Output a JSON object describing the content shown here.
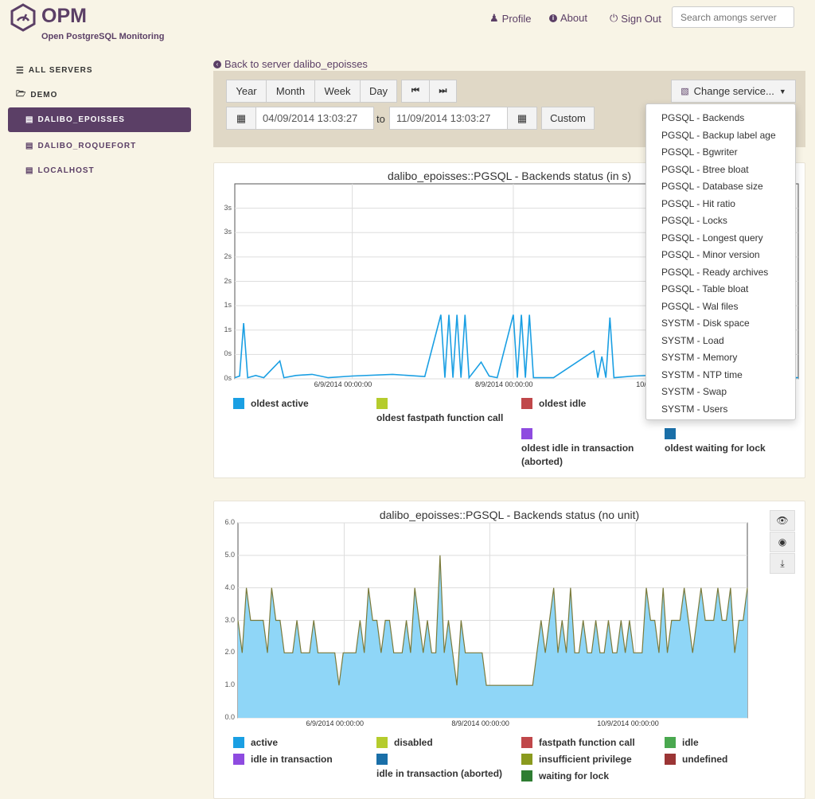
{
  "app": {
    "name": "OPM",
    "subtitle": "Open PostgreSQL Monitoring"
  },
  "topnav": [
    {
      "label": "Profile",
      "icon": "user-icon"
    },
    {
      "label": "About",
      "icon": "info-icon"
    },
    {
      "label": "Sign Out",
      "icon": "power-icon"
    }
  ],
  "search": {
    "placeholder": "Search amongs server",
    "value": ""
  },
  "sidebar": {
    "items": [
      {
        "label": "ALL SERVERS",
        "icon": "list-icon"
      },
      {
        "label": "DEMO",
        "icon": "folder-icon"
      },
      {
        "label": "DALIBO_EPOISSES",
        "icon": "server-icon",
        "active": true
      },
      {
        "label": "DALIBO_ROQUEFORT",
        "icon": "server-icon"
      },
      {
        "label": "LOCALHOST",
        "icon": "server-icon"
      }
    ]
  },
  "back_link": "Back to server dalibo_epoisses",
  "toolbar": {
    "ranges": [
      "Year",
      "Month",
      "Week",
      "Day"
    ],
    "start": "04/09/2014 13:03:27",
    "to": "to",
    "end": "11/09/2014 13:03:27",
    "custom": "Custom",
    "change_service": "Change service...",
    "accent": "#5b3f66"
  },
  "dropdown": [
    "PGSQL - Backends",
    "PGSQL - Backup label age",
    "PGSQL - Bgwriter",
    "PGSQL - Btree bloat",
    "PGSQL - Database size",
    "PGSQL - Hit ratio",
    "PGSQL - Locks",
    "PGSQL - Longest query",
    "PGSQL - Minor version",
    "PGSQL - Ready archives",
    "PGSQL - Table bloat",
    "PGSQL - Wal files",
    "SYSTM - Disk space",
    "SYSTM - Load",
    "SYSTM - Memory",
    "SYSTM - NTP time",
    "SYSTM - Swap",
    "SYSTM - Users"
  ],
  "chart_data": [
    {
      "type": "line",
      "title": "dalibo_epoisses::PGSQL - Backends status (in s)",
      "yticks": [
        "0s",
        "0s",
        "1s",
        "1s",
        "2s",
        "2s",
        "3s",
        "3s"
      ],
      "ylim": [
        0,
        3.5
      ],
      "xticks": [
        "6/9/2014 00:00:00",
        "8/9/2014 00:00:00",
        "10/9/2014 00:00:00"
      ],
      "xlim_days": [
        4.54,
        11.54
      ],
      "grid": true,
      "legend_position": "bottom",
      "series": [
        {
          "name": "oldest active",
          "color": "#1a9fe3",
          "points": [
            [
              4.54,
              0.02
            ],
            [
              4.6,
              0.05
            ],
            [
              4.65,
              1.0
            ],
            [
              4.7,
              0.02
            ],
            [
              4.8,
              0.06
            ],
            [
              4.9,
              0.02
            ],
            [
              5.1,
              0.32
            ],
            [
              5.15,
              0.02
            ],
            [
              5.3,
              0.06
            ],
            [
              5.5,
              0.08
            ],
            [
              5.7,
              0.02
            ],
            [
              6.0,
              0.05
            ],
            [
              6.5,
              0.08
            ],
            [
              6.9,
              0.04
            ],
            [
              7.1,
              1.15
            ],
            [
              7.15,
              0.02
            ],
            [
              7.2,
              1.15
            ],
            [
              7.25,
              0.02
            ],
            [
              7.3,
              1.15
            ],
            [
              7.35,
              0.02
            ],
            [
              7.4,
              1.15
            ],
            [
              7.45,
              0.02
            ],
            [
              7.6,
              0.3
            ],
            [
              7.7,
              0.05
            ],
            [
              7.8,
              0.02
            ],
            [
              8.0,
              1.15
            ],
            [
              8.05,
              0.02
            ],
            [
              8.1,
              1.15
            ],
            [
              8.15,
              0.02
            ],
            [
              8.2,
              1.15
            ],
            [
              8.25,
              0.02
            ],
            [
              8.5,
              0.02
            ],
            [
              9.0,
              0.5
            ],
            [
              9.05,
              0.02
            ],
            [
              9.1,
              0.4
            ],
            [
              9.15,
              0.02
            ],
            [
              9.2,
              1.1
            ],
            [
              9.25,
              0.02
            ],
            [
              9.5,
              0.05
            ],
            [
              10.0,
              0.08
            ],
            [
              10.2,
              0.04
            ],
            [
              10.4,
              1.15
            ],
            [
              10.45,
              0.02
            ],
            [
              10.5,
              1.15
            ],
            [
              10.55,
              0.02
            ],
            [
              10.6,
              1.15
            ],
            [
              10.65,
              0.02
            ],
            [
              10.7,
              1.15
            ],
            [
              10.75,
              0.02
            ],
            [
              11.54,
              0.02
            ]
          ]
        },
        {
          "name": "oldest fastpath function call",
          "color": "#b5cc2d"
        },
        {
          "name": "oldest idle",
          "color": "#c0474a"
        },
        {
          "name": "oldest idle in transaction (aborted)",
          "color": "#8e4be0"
        },
        {
          "name": "oldest waiting for lock",
          "color": "#1a6fa8"
        }
      ]
    },
    {
      "type": "area",
      "title": "dalibo_epoisses::PGSQL - Backends status (no unit)",
      "yticks": [
        "0.0",
        "1.0",
        "2.0",
        "3.0",
        "4.0",
        "5.0",
        "6.0"
      ],
      "ylim": [
        0,
        6
      ],
      "xticks": [
        "6/9/2014 00:00:00",
        "8/9/2014 00:00:00",
        "10/9/2014 00:00:00"
      ],
      "xlim_days": [
        4.54,
        11.54
      ],
      "grid": true,
      "legend_position": "bottom",
      "series": [
        {
          "name": "active",
          "color": "#1a9fe3",
          "fill": "#8fd6f7",
          "values": [
            3,
            2,
            4,
            3,
            3,
            3,
            3,
            2,
            4,
            3,
            3,
            2,
            2,
            2,
            3,
            2,
            2,
            2,
            3,
            2,
            2,
            2,
            2,
            2,
            1,
            2,
            2,
            2,
            2,
            3,
            2,
            4,
            3,
            3,
            2,
            3,
            3,
            2,
            2,
            2,
            3,
            2,
            4,
            3,
            2,
            3,
            2,
            2,
            5,
            2,
            3,
            2,
            1,
            3,
            2,
            2,
            2,
            2,
            2,
            1,
            1,
            1,
            1,
            1,
            1,
            1,
            1,
            1,
            1,
            1,
            1,
            2,
            3,
            2,
            3,
            4,
            2,
            3,
            2,
            4,
            2,
            2,
            3,
            2,
            2,
            3,
            2,
            2,
            3,
            2,
            2,
            3,
            2,
            3,
            2,
            2,
            2,
            4,
            3,
            3,
            2,
            4,
            2,
            3,
            3,
            3,
            4,
            3,
            2,
            3,
            4,
            3,
            3,
            3,
            4,
            3,
            3,
            4,
            2,
            3,
            3,
            4
          ]
        },
        {
          "name": "disabled",
          "color": "#b5cc2d"
        },
        {
          "name": "fastpath function call",
          "color": "#c0474a"
        },
        {
          "name": "idle",
          "color": "#4aa84f"
        },
        {
          "name": "idle in transaction",
          "color": "#8e4be0"
        },
        {
          "name": "idle in transaction (aborted)",
          "color": "#1a6fa8"
        },
        {
          "name": "insufficient privilege",
          "color": "#8a9a1e"
        },
        {
          "name": "undefined",
          "color": "#9b3535"
        },
        {
          "name": "waiting for lock",
          "color": "#2e7d32"
        }
      ]
    }
  ]
}
